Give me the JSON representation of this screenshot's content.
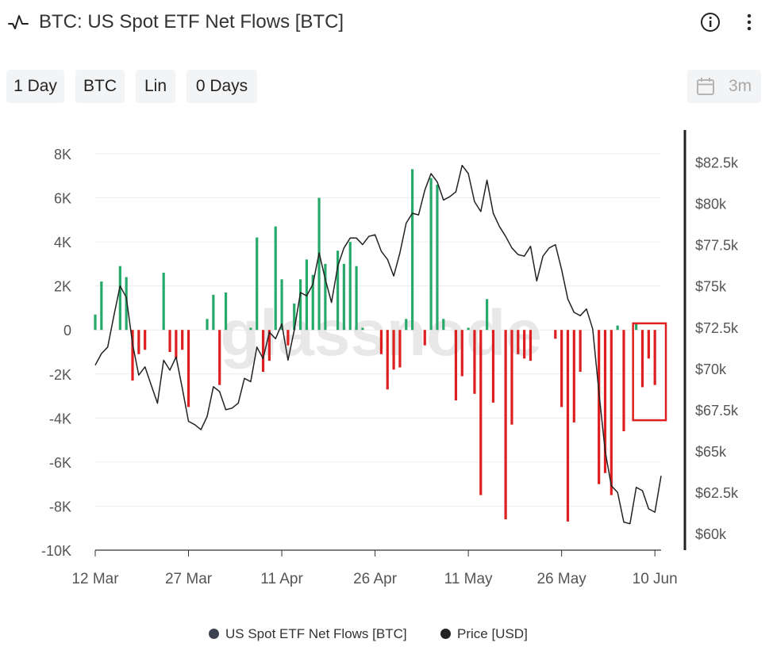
{
  "header": {
    "title": "BTC: US Spot ETF Net Flows [BTC]",
    "title_icon": "pulse-chart-icon",
    "info_icon": "info-icon",
    "more_icon": "more-vertical-icon"
  },
  "toolbar": {
    "resolution": "1 Day",
    "asset": "BTC",
    "scale": "Lin",
    "sma": "0 Days",
    "range": "3m",
    "range_icon": "calendar-icon"
  },
  "watermark": "glassnode",
  "legend": [
    {
      "label": "US Spot ETF Net Flows [BTC]",
      "color": "#3d4250"
    },
    {
      "label": "Price [USD]",
      "color": "#222222"
    }
  ],
  "chart_data": {
    "type": "bar",
    "title": "BTC: US Spot ETF Net Flows [BTC]",
    "x_tick_labels": [
      "12 Mar",
      "27 Mar",
      "11 Apr",
      "26 Apr",
      "11 May",
      "26 May",
      "10 Jun"
    ],
    "x_start_day": 0,
    "x_end_day": 91,
    "y_left": {
      "min": -10000,
      "max": 8000,
      "ticks": [
        8000,
        6000,
        4000,
        2000,
        0,
        -2000,
        -4000,
        -6000,
        -8000,
        -10000
      ],
      "tick_labels": [
        "8K",
        "6K",
        "4K",
        "2K",
        "0",
        "-2K",
        "-4K",
        "-6K",
        "-8K",
        "-10K"
      ]
    },
    "y_right": {
      "min": 59000,
      "max": 83000,
      "ticks": [
        82500,
        80000,
        77500,
        75000,
        72500,
        70000,
        67500,
        65000,
        62500,
        60000
      ],
      "tick_labels": [
        "$82.5k",
        "$80k",
        "$77.5k",
        "$75k",
        "$72.5k",
        "$70k",
        "$67.5k",
        "$65k",
        "$62.5k",
        "$60k"
      ]
    },
    "colors": {
      "positive": "#27a96a",
      "negative": "#dd1f1f",
      "price": "#222222",
      "highlight": "#dd1f1f",
      "grid": "#ececec"
    },
    "highlight_days": [
      87,
      91
    ],
    "series": [
      {
        "name": "US Spot ETF Net Flows [BTC]",
        "type": "bar",
        "points": [
          [
            0,
            700
          ],
          [
            1,
            2200
          ],
          [
            4,
            2900
          ],
          [
            5,
            2400
          ],
          [
            6,
            -2300
          ],
          [
            7,
            -1100
          ],
          [
            8,
            -900
          ],
          [
            11,
            2600
          ],
          [
            12,
            -1000
          ],
          [
            13,
            -1300
          ],
          [
            14,
            -900
          ],
          [
            15,
            -3500
          ],
          [
            18,
            500
          ],
          [
            19,
            1600
          ],
          [
            20,
            -2500
          ],
          [
            21,
            1700
          ],
          [
            25,
            100
          ],
          [
            26,
            4200
          ],
          [
            27,
            -1900
          ],
          [
            28,
            -1400
          ],
          [
            29,
            4700
          ],
          [
            30,
            2300
          ],
          [
            31,
            -700
          ],
          [
            32,
            1200
          ],
          [
            33,
            2300
          ],
          [
            34,
            3200
          ],
          [
            35,
            2500
          ],
          [
            36,
            6000
          ],
          [
            37,
            3000
          ],
          [
            39,
            3600
          ],
          [
            40,
            3000
          ],
          [
            41,
            4000
          ],
          [
            42,
            2900
          ],
          [
            43,
            100
          ],
          [
            46,
            -1100
          ],
          [
            47,
            -2700
          ],
          [
            48,
            -1800
          ],
          [
            49,
            -1700
          ],
          [
            50,
            500
          ],
          [
            51,
            7300
          ],
          [
            53,
            -700
          ],
          [
            54,
            6900
          ],
          [
            55,
            6600
          ],
          [
            56,
            500
          ],
          [
            58,
            -3200
          ],
          [
            59,
            -2100
          ],
          [
            60,
            100
          ],
          [
            61,
            -2900
          ],
          [
            62,
            -7500
          ],
          [
            63,
            1400
          ],
          [
            64,
            -3300
          ],
          [
            66,
            -8600
          ],
          [
            67,
            -4300
          ],
          [
            68,
            -1100
          ],
          [
            69,
            -1300
          ],
          [
            70,
            -1400
          ],
          [
            74,
            -400
          ],
          [
            75,
            -3500
          ],
          [
            76,
            -8700
          ],
          [
            77,
            -4200
          ],
          [
            78,
            -1900
          ],
          [
            81,
            -7000
          ],
          [
            82,
            -6500
          ],
          [
            83,
            -7500
          ],
          [
            84,
            200
          ],
          [
            85,
            -4600
          ],
          [
            87,
            300
          ],
          [
            88,
            -2600
          ],
          [
            89,
            -1300
          ],
          [
            90,
            -2500
          ]
        ]
      },
      {
        "name": "Price [USD]",
        "type": "line",
        "points": [
          [
            0,
            70200
          ],
          [
            1,
            70900
          ],
          [
            2,
            71300
          ],
          [
            3,
            73200
          ],
          [
            4,
            75000
          ],
          [
            5,
            74300
          ],
          [
            6,
            71500
          ],
          [
            7,
            69600
          ],
          [
            8,
            70100
          ],
          [
            9,
            69000
          ],
          [
            10,
            67900
          ],
          [
            11,
            70500
          ],
          [
            12,
            69900
          ],
          [
            13,
            70700
          ],
          [
            14,
            68800
          ],
          [
            15,
            66800
          ],
          [
            16,
            66600
          ],
          [
            17,
            66300
          ],
          [
            18,
            67100
          ],
          [
            19,
            68900
          ],
          [
            20,
            68600
          ],
          [
            21,
            67500
          ],
          [
            22,
            67600
          ],
          [
            23,
            67900
          ],
          [
            24,
            69400
          ],
          [
            25,
            69200
          ],
          [
            26,
            71300
          ],
          [
            27,
            70600
          ],
          [
            28,
            72200
          ],
          [
            29,
            71800
          ],
          [
            30,
            72700
          ],
          [
            31,
            70500
          ],
          [
            32,
            72300
          ],
          [
            33,
            74600
          ],
          [
            34,
            74400
          ],
          [
            35,
            75100
          ],
          [
            36,
            77000
          ],
          [
            37,
            75400
          ],
          [
            38,
            74000
          ],
          [
            39,
            76200
          ],
          [
            40,
            77300
          ],
          [
            41,
            77900
          ],
          [
            42,
            77900
          ],
          [
            43,
            77500
          ],
          [
            44,
            78000
          ],
          [
            45,
            78100
          ],
          [
            46,
            77100
          ],
          [
            47,
            76600
          ],
          [
            48,
            75600
          ],
          [
            49,
            77000
          ],
          [
            50,
            78800
          ],
          [
            51,
            79400
          ],
          [
            52,
            79300
          ],
          [
            53,
            80800
          ],
          [
            54,
            81800
          ],
          [
            55,
            81300
          ],
          [
            56,
            80200
          ],
          [
            57,
            80400
          ],
          [
            58,
            80700
          ],
          [
            59,
            82300
          ],
          [
            60,
            81800
          ],
          [
            61,
            80100
          ],
          [
            62,
            79500
          ],
          [
            63,
            81400
          ],
          [
            64,
            79400
          ],
          [
            65,
            78600
          ],
          [
            66,
            78000
          ],
          [
            67,
            77300
          ],
          [
            68,
            76900
          ],
          [
            69,
            76800
          ],
          [
            70,
            77400
          ],
          [
            71,
            75300
          ],
          [
            72,
            76800
          ],
          [
            73,
            77300
          ],
          [
            74,
            77500
          ],
          [
            75,
            76000
          ],
          [
            76,
            74200
          ],
          [
            77,
            73400
          ],
          [
            78,
            73200
          ],
          [
            79,
            73600
          ],
          [
            80,
            72400
          ],
          [
            81,
            68600
          ],
          [
            82,
            65000
          ],
          [
            83,
            62900
          ],
          [
            84,
            62500
          ],
          [
            85,
            60700
          ],
          [
            86,
            60600
          ],
          [
            87,
            62800
          ],
          [
            88,
            62600
          ],
          [
            89,
            61500
          ],
          [
            90,
            61300
          ],
          [
            91,
            63500
          ]
        ]
      }
    ],
    "legend_position": "bottom-center",
    "grid": true
  }
}
